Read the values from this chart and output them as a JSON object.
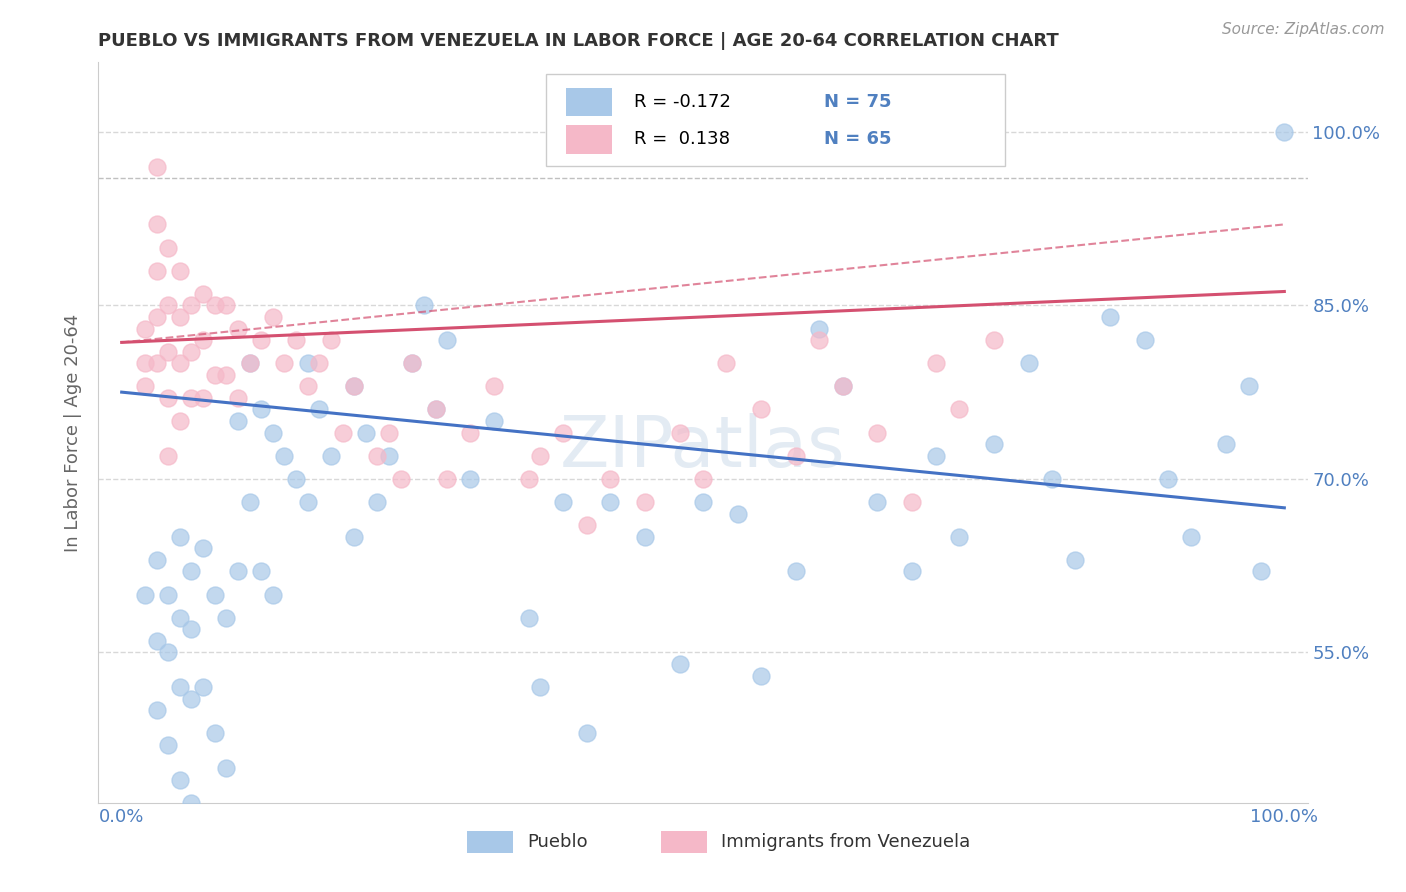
{
  "title": "PUEBLO VS IMMIGRANTS FROM VENEZUELA IN LABOR FORCE | AGE 20-64 CORRELATION CHART",
  "source": "Source: ZipAtlas.com",
  "ylabel": "In Labor Force | Age 20-64",
  "blue_label": "Pueblo",
  "pink_label": "Immigrants from Venezuela",
  "blue_R": -0.172,
  "blue_N": 75,
  "pink_R": 0.138,
  "pink_N": 65,
  "xlim": [
    -0.02,
    1.02
  ],
  "ylim": [
    0.42,
    1.06
  ],
  "yticks": [
    0.55,
    0.7,
    0.85,
    1.0
  ],
  "ytick_labels": [
    "55.0%",
    "70.0%",
    "85.0%",
    "100.0%"
  ],
  "xticks": [
    0.0,
    0.25,
    0.5,
    0.75,
    1.0
  ],
  "xtick_labels": [
    "0.0%",
    "",
    "",
    "",
    "100.0%"
  ],
  "watermark": "ZIPatlas",
  "blue_color": "#a8c8e8",
  "pink_color": "#f5b8c8",
  "blue_line_color": "#4472c4",
  "pink_line_color": "#d45070",
  "dashed_line_color": "#c0c0c0",
  "title_color": "#333333",
  "axis_color": "#5080c0",
  "background_color": "#ffffff",
  "grid_color": "#d8d8d8",
  "blue_scatter_x": [
    0.02,
    0.03,
    0.03,
    0.03,
    0.04,
    0.04,
    0.04,
    0.05,
    0.05,
    0.05,
    0.05,
    0.06,
    0.06,
    0.06,
    0.06,
    0.07,
    0.07,
    0.08,
    0.08,
    0.09,
    0.09,
    0.1,
    0.1,
    0.11,
    0.11,
    0.12,
    0.12,
    0.13,
    0.13,
    0.14,
    0.15,
    0.16,
    0.16,
    0.17,
    0.18,
    0.2,
    0.2,
    0.21,
    0.22,
    0.23,
    0.25,
    0.26,
    0.27,
    0.28,
    0.3,
    0.32,
    0.35,
    0.36,
    0.38,
    0.4,
    0.42,
    0.45,
    0.48,
    0.5,
    0.53,
    0.55,
    0.58,
    0.6,
    0.62,
    0.65,
    0.68,
    0.7,
    0.72,
    0.75,
    0.78,
    0.8,
    0.82,
    0.85,
    0.88,
    0.9,
    0.92,
    0.95,
    0.97,
    0.98,
    1.0
  ],
  "blue_scatter_y": [
    0.6,
    0.63,
    0.56,
    0.5,
    0.6,
    0.55,
    0.47,
    0.65,
    0.58,
    0.52,
    0.44,
    0.62,
    0.57,
    0.51,
    0.42,
    0.64,
    0.52,
    0.6,
    0.48,
    0.58,
    0.45,
    0.75,
    0.62,
    0.8,
    0.68,
    0.76,
    0.62,
    0.74,
    0.6,
    0.72,
    0.7,
    0.8,
    0.68,
    0.76,
    0.72,
    0.78,
    0.65,
    0.74,
    0.68,
    0.72,
    0.8,
    0.85,
    0.76,
    0.82,
    0.7,
    0.75,
    0.58,
    0.52,
    0.68,
    0.48,
    0.68,
    0.65,
    0.54,
    0.68,
    0.67,
    0.53,
    0.62,
    0.83,
    0.78,
    0.68,
    0.62,
    0.72,
    0.65,
    0.73,
    0.8,
    0.7,
    0.63,
    0.84,
    0.82,
    0.7,
    0.65,
    0.73,
    0.78,
    0.62,
    1.0
  ],
  "pink_scatter_x": [
    0.02,
    0.02,
    0.02,
    0.03,
    0.03,
    0.03,
    0.03,
    0.03,
    0.04,
    0.04,
    0.04,
    0.04,
    0.04,
    0.05,
    0.05,
    0.05,
    0.05,
    0.06,
    0.06,
    0.06,
    0.07,
    0.07,
    0.07,
    0.08,
    0.08,
    0.09,
    0.09,
    0.1,
    0.1,
    0.11,
    0.12,
    0.13,
    0.14,
    0.15,
    0.16,
    0.17,
    0.18,
    0.19,
    0.2,
    0.22,
    0.23,
    0.24,
    0.25,
    0.27,
    0.28,
    0.3,
    0.32,
    0.35,
    0.36,
    0.38,
    0.4,
    0.42,
    0.45,
    0.48,
    0.5,
    0.52,
    0.55,
    0.58,
    0.6,
    0.62,
    0.65,
    0.68,
    0.7,
    0.72,
    0.75
  ],
  "pink_scatter_y": [
    0.83,
    0.8,
    0.78,
    0.97,
    0.92,
    0.88,
    0.84,
    0.8,
    0.9,
    0.85,
    0.81,
    0.77,
    0.72,
    0.88,
    0.84,
    0.8,
    0.75,
    0.85,
    0.81,
    0.77,
    0.86,
    0.82,
    0.77,
    0.85,
    0.79,
    0.85,
    0.79,
    0.83,
    0.77,
    0.8,
    0.82,
    0.84,
    0.8,
    0.82,
    0.78,
    0.8,
    0.82,
    0.74,
    0.78,
    0.72,
    0.74,
    0.7,
    0.8,
    0.76,
    0.7,
    0.74,
    0.78,
    0.7,
    0.72,
    0.74,
    0.66,
    0.7,
    0.68,
    0.74,
    0.7,
    0.8,
    0.76,
    0.72,
    0.82,
    0.78,
    0.74,
    0.68,
    0.8,
    0.76,
    0.82
  ],
  "blue_trend_x": [
    0.0,
    1.0
  ],
  "blue_trend_y": [
    0.775,
    0.675
  ],
  "pink_trend_x": [
    0.0,
    1.0
  ],
  "pink_trend_y": [
    0.818,
    0.862
  ],
  "pink_dash_trend_x": [
    0.0,
    1.0
  ],
  "pink_dash_trend_y": [
    0.818,
    0.92
  ],
  "dashed_line_y": 0.96
}
